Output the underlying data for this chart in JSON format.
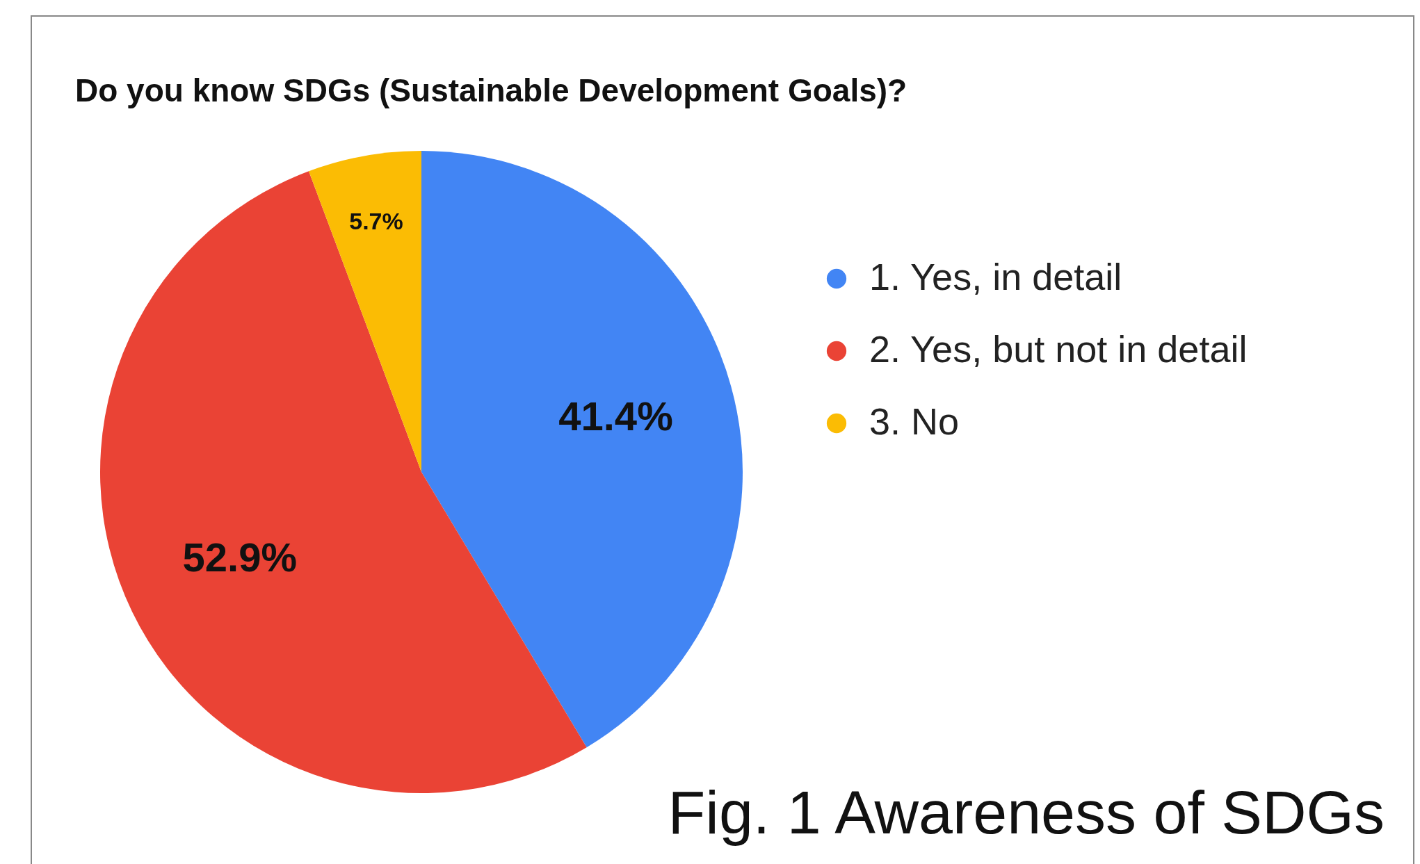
{
  "chart_data": {
    "type": "pie",
    "title": "Do you know SDGs (Sustainable Development Goals)?",
    "categories": [
      "1. Yes, in detail",
      "2. Yes, but not in detail",
      "3. No"
    ],
    "values": [
      41.4,
      52.9,
      5.7
    ],
    "colors": [
      "#4285f4",
      "#ea4335",
      "#fbbc04"
    ],
    "value_labels": [
      "41.4%",
      "52.9%",
      "5.7%"
    ],
    "legend": "right",
    "annotations": [
      "Fig. 1 Awareness of SDGs"
    ]
  }
}
